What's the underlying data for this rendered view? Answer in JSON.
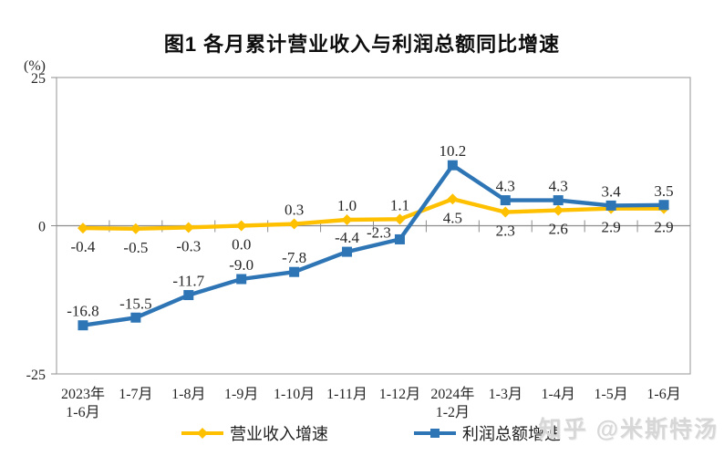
{
  "watermark": "知乎 @米斯特汤",
  "chart_data": {
    "type": "line",
    "title": "图1 各月累计营业收入与利润总额同比增速",
    "y_unit_label": "(%)",
    "ylim": [
      -25,
      25
    ],
    "y_ticks": [
      25,
      0,
      -25
    ],
    "grid": false,
    "legend_position": "bottom",
    "categories": [
      "2023年\n1-6月",
      "1-7月",
      "1-8月",
      "1-9月",
      "1-10月",
      "1-11月",
      "1-12月",
      "2024年\n1-2月",
      "1-3月",
      "1-4月",
      "1-5月",
      "1-6月"
    ],
    "series": [
      {
        "name": "营业收入增速",
        "color": "#FFC000",
        "marker": "diamond",
        "values": [
          -0.4,
          -0.5,
          -0.3,
          0.0,
          0.3,
          1.0,
          1.1,
          4.5,
          2.3,
          2.6,
          2.9,
          2.9
        ],
        "label_side": [
          "below",
          "below",
          "below",
          "below",
          "above",
          "above",
          "above",
          "below",
          "below",
          "below",
          "below",
          "below"
        ]
      },
      {
        "name": "利润总额增速",
        "color": "#2E75B6",
        "marker": "square",
        "values": [
          -16.8,
          -15.5,
          -11.7,
          -9.0,
          -7.8,
          -4.4,
          -2.3,
          10.2,
          4.3,
          4.3,
          3.4,
          3.5
        ],
        "label_side": [
          "above",
          "above",
          "above",
          "above",
          "above",
          "above",
          "above-left",
          "above",
          "above",
          "above",
          "above",
          "above"
        ]
      }
    ],
    "axis_color": "#a6a6a6",
    "zero_line_color": "#8c8c8c"
  }
}
